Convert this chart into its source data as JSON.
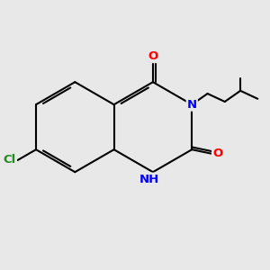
{
  "background_color": "#e8e8e8",
  "atom_colors": {
    "O": "#ff0000",
    "N": "#0000ff",
    "Cl": "#228B22",
    "C": "#000000"
  },
  "bond_lw": 1.5,
  "font_size": 9.5,
  "figsize": [
    3.0,
    3.0
  ],
  "dpi": 100,
  "xlim": [
    0,
    10
  ],
  "ylim": [
    0,
    10
  ]
}
